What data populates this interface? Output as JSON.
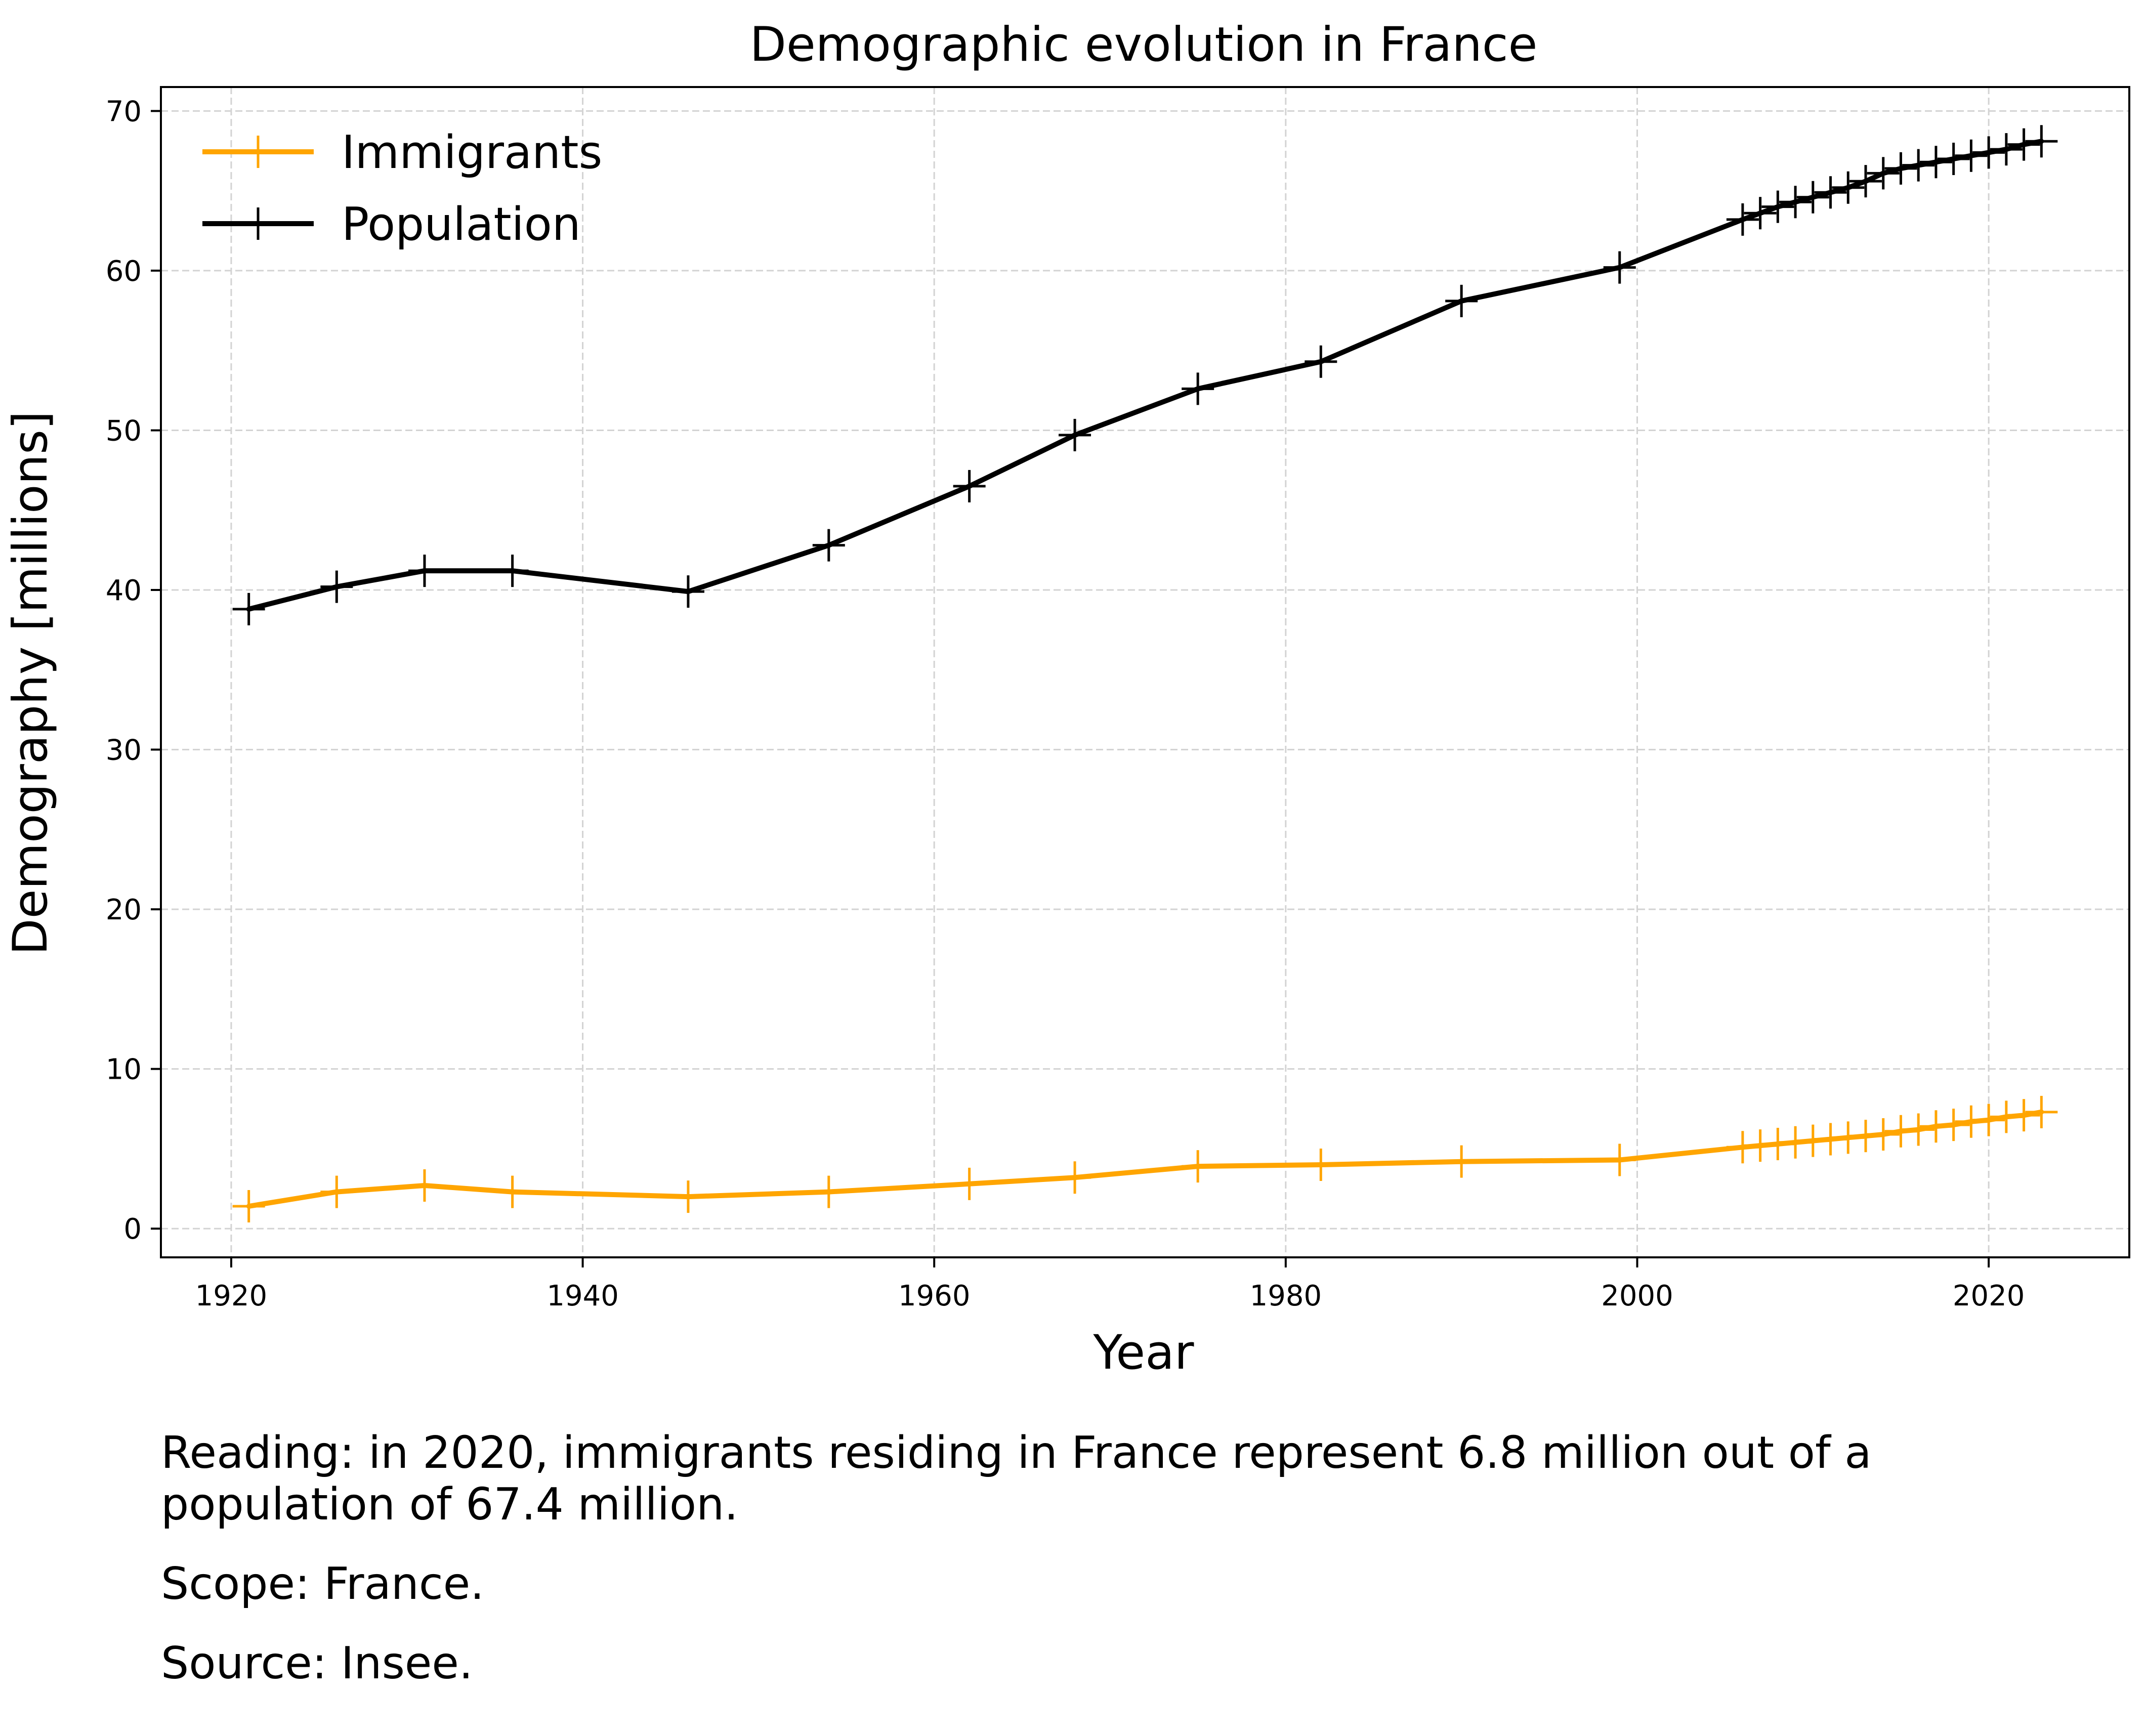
{
  "chart_data": {
    "type": "line",
    "title": "Demographic evolution in France",
    "xlabel": "Year",
    "ylabel": "Demography [millions]",
    "xlim": [
      1916,
      2028
    ],
    "ylim": [
      -1.8,
      71.5
    ],
    "x_ticks": [
      1920,
      1940,
      1960,
      1980,
      2000,
      2020
    ],
    "y_ticks": [
      0,
      10,
      20,
      30,
      40,
      50,
      60,
      70
    ],
    "grid": true,
    "legend_position": "top-left",
    "series": [
      {
        "name": "Immigrants",
        "color": "#ffa500",
        "marker": "plus",
        "x": [
          1921,
          1926,
          1931,
          1936,
          1946,
          1954,
          1962,
          1968,
          1975,
          1982,
          1990,
          1999,
          2006,
          2007,
          2008,
          2009,
          2010,
          2011,
          2012,
          2013,
          2014,
          2015,
          2016,
          2017,
          2018,
          2019,
          2020,
          2021,
          2022,
          2023
        ],
        "y": [
          1.4,
          2.3,
          2.7,
          2.3,
          2.0,
          2.3,
          2.8,
          3.2,
          3.9,
          4.0,
          4.2,
          4.3,
          5.1,
          5.2,
          5.3,
          5.4,
          5.5,
          5.6,
          5.7,
          5.8,
          5.9,
          6.1,
          6.2,
          6.4,
          6.5,
          6.7,
          6.8,
          7.0,
          7.1,
          7.3
        ]
      },
      {
        "name": "Population",
        "color": "#000000",
        "marker": "plus",
        "x": [
          1921,
          1926,
          1931,
          1936,
          1946,
          1954,
          1962,
          1968,
          1975,
          1982,
          1990,
          1999,
          2006,
          2007,
          2008,
          2009,
          2010,
          2011,
          2012,
          2013,
          2014,
          2015,
          2016,
          2017,
          2018,
          2019,
          2020,
          2021,
          2022,
          2023
        ],
        "y": [
          38.8,
          40.2,
          41.2,
          41.2,
          39.9,
          42.8,
          46.5,
          49.7,
          52.6,
          54.3,
          58.1,
          60.2,
          63.2,
          63.6,
          64.0,
          64.3,
          64.6,
          64.9,
          65.2,
          65.6,
          66.1,
          66.4,
          66.6,
          66.8,
          67.0,
          67.2,
          67.4,
          67.6,
          67.9,
          68.1
        ]
      }
    ]
  },
  "notes": {
    "reading": "Reading: in 2020, immigrants residing in France represent 6.8 million out of a population of 67.4 million.",
    "scope": "Scope: France.",
    "source": "Source: Insee."
  }
}
